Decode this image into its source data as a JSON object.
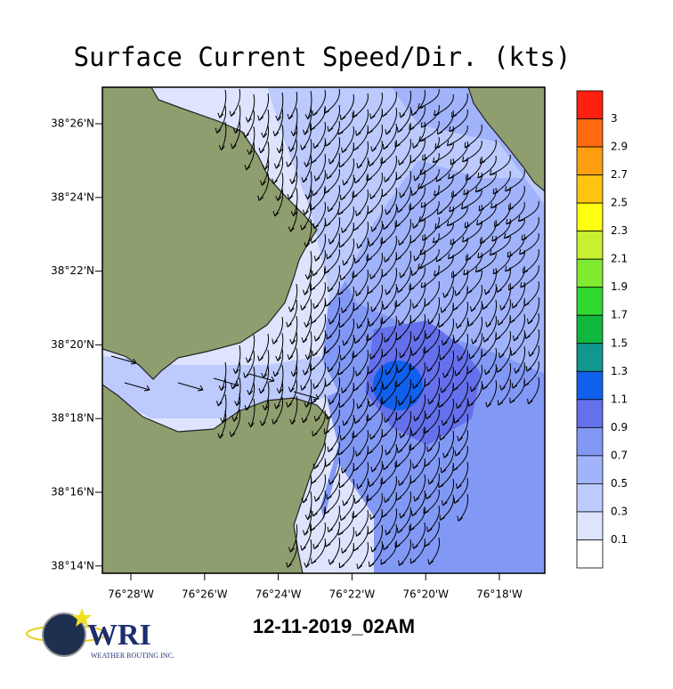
{
  "title": "Surface Current Speed/Dir. (kts)",
  "y_ticks": [
    "38°26'N",
    "38°24'N",
    "38°22'N",
    "38°20'N",
    "38°18'N",
    "38°16'N",
    "38°14'N"
  ],
  "x_ticks": [
    "76°28'W",
    "76°26'W",
    "76°24'W",
    "76°22'W",
    "76°20'W",
    "76°18'W"
  ],
  "colorbar": {
    "labels": [
      3,
      2.9,
      2.7,
      2.5,
      2.3,
      2.1,
      1.9,
      1.7,
      1.5,
      1.3,
      1.1,
      0.9,
      0.7,
      0.5,
      0.3,
      0.1
    ],
    "colors": [
      "#ff2010",
      "#ff6a10",
      "#ff9e10",
      "#ffc410",
      "#ffff10",
      "#c8f030",
      "#80ea30",
      "#30d830",
      "#10b840",
      "#109890",
      "#1060ee",
      "#6470ec",
      "#8198f5",
      "#a0b3fb",
      "#bccafe",
      "#dfe4fe",
      "#ffffff"
    ]
  },
  "date": "12-11-2019_02AM",
  "logo": {
    "name": "WRI",
    "tagline": "WEATHER ROUTING INC."
  }
}
